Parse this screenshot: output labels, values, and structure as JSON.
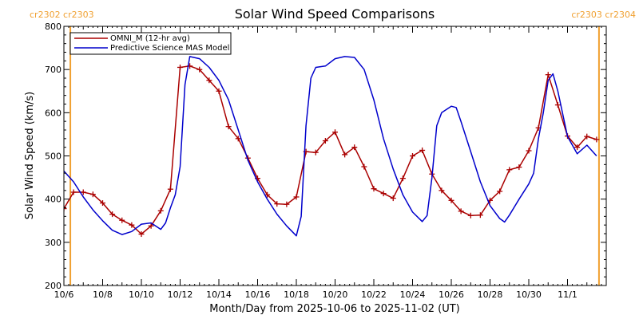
{
  "colors": {
    "omni": "#aa0000",
    "model": "#0000cc",
    "carrington": "#f0a030",
    "axis": "#000000"
  },
  "chart_data": {
    "type": "line",
    "title": "Solar Wind Speed Comparisons",
    "xlabel": "Month/Day from 2025-10-06 to 2025-11-02 (UT)",
    "ylabel": "Solar Wind Speed (km/s)",
    "ylim": [
      200,
      800
    ],
    "y_ticks": [
      "200",
      "300",
      "400",
      "500",
      "600",
      "700",
      "800"
    ],
    "xlim": [
      "2025-10-06",
      "2025-11-02"
    ],
    "x_ticks": [
      {
        "date": "2025-10-06",
        "label": "10/6"
      },
      {
        "date": "2025-10-08",
        "label": "10/8"
      },
      {
        "date": "2025-10-10",
        "label": "10/10"
      },
      {
        "date": "2025-10-12",
        "label": "10/12"
      },
      {
        "date": "2025-10-14",
        "label": "10/14"
      },
      {
        "date": "2025-10-16",
        "label": "10/16"
      },
      {
        "date": "2025-10-18",
        "label": "10/18"
      },
      {
        "date": "2025-10-20",
        "label": "10/20"
      },
      {
        "date": "2025-10-22",
        "label": "10/22"
      },
      {
        "date": "2025-10-24",
        "label": "10/24"
      },
      {
        "date": "2025-10-26",
        "label": "10/26"
      },
      {
        "date": "2025-10-28",
        "label": "10/28"
      },
      {
        "date": "2025-10-30",
        "label": "10/30"
      },
      {
        "date": "2025-11-01",
        "label": "11/1"
      }
    ],
    "legend_position": "top-left",
    "grid": false,
    "carrington_markers": [
      {
        "date": "2025-10-06 08:00",
        "label": "cr2302 cr2303",
        "label_side": "top-left"
      },
      {
        "date": "2025-11-02 15:00",
        "label": "cr2303 cr2304",
        "label_side": "top-right"
      }
    ],
    "series": [
      {
        "name": "OMNI_M (12-hr avg)",
        "color": "#aa0000",
        "markers": true,
        "points": [
          [
            "2025-10-06 00:00",
            378
          ],
          [
            "2025-10-06 12:00",
            416
          ],
          [
            "2025-10-07 00:00",
            416
          ],
          [
            "2025-10-07 12:00",
            411
          ],
          [
            "2025-10-08 00:00",
            391
          ],
          [
            "2025-10-08 12:00",
            365
          ],
          [
            "2025-10-09 00:00",
            351
          ],
          [
            "2025-10-09 12:00",
            340
          ],
          [
            "2025-10-10 00:00",
            319
          ],
          [
            "2025-10-10 12:00",
            338
          ],
          [
            "2025-10-11 00:00",
            373
          ],
          [
            "2025-10-11 12:00",
            423
          ],
          [
            "2025-10-12 00:00",
            705
          ],
          [
            "2025-10-12 12:00",
            708
          ],
          [
            "2025-10-13 00:00",
            700
          ],
          [
            "2025-10-13 12:00",
            675
          ],
          [
            "2025-10-14 00:00",
            650
          ],
          [
            "2025-10-14 12:00",
            568
          ],
          [
            "2025-10-15 00:00",
            540
          ],
          [
            "2025-10-15 12:00",
            495
          ],
          [
            "2025-10-16 00:00",
            448
          ],
          [
            "2025-10-16 12:00",
            410
          ],
          [
            "2025-10-17 00:00",
            389
          ],
          [
            "2025-10-17 12:00",
            388
          ],
          [
            "2025-10-18 00:00",
            405
          ],
          [
            "2025-10-18 12:00",
            510
          ],
          [
            "2025-10-19 00:00",
            508
          ],
          [
            "2025-10-19 12:00",
            535
          ],
          [
            "2025-10-20 00:00",
            555
          ],
          [
            "2025-10-20 12:00",
            503
          ],
          [
            "2025-10-21 00:00",
            520
          ],
          [
            "2025-10-21 12:00",
            475
          ],
          [
            "2025-10-22 00:00",
            424
          ],
          [
            "2025-10-22 12:00",
            413
          ],
          [
            "2025-10-23 00:00",
            402
          ],
          [
            "2025-10-23 12:00",
            448
          ],
          [
            "2025-10-24 00:00",
            500
          ],
          [
            "2025-10-24 12:00",
            513
          ],
          [
            "2025-10-25 00:00",
            458
          ],
          [
            "2025-10-25 12:00",
            420
          ],
          [
            "2025-10-26 00:00",
            397
          ],
          [
            "2025-10-26 12:00",
            372
          ],
          [
            "2025-10-27 00:00",
            362
          ],
          [
            "2025-10-27 12:00",
            363
          ],
          [
            "2025-10-28 00:00",
            397
          ],
          [
            "2025-10-28 12:00",
            418
          ],
          [
            "2025-10-29 00:00",
            468
          ],
          [
            "2025-10-29 12:00",
            474
          ],
          [
            "2025-10-30 00:00",
            512
          ],
          [
            "2025-10-30 12:00",
            565
          ],
          [
            "2025-10-31 00:00",
            688
          ],
          [
            "2025-10-31 12:00",
            618
          ],
          [
            "2025-11-01 00:00",
            546
          ],
          [
            "2025-11-01 12:00",
            520
          ],
          [
            "2025-11-02 00:00",
            545
          ],
          [
            "2025-11-02 12:00",
            538
          ]
        ]
      },
      {
        "name": "Predictive Science MAS Model",
        "color": "#0000cc",
        "markers": false,
        "points": [
          [
            "2025-10-06 00:00",
            465
          ],
          [
            "2025-10-06 12:00",
            440
          ],
          [
            "2025-10-07 00:00",
            405
          ],
          [
            "2025-10-07 12:00",
            375
          ],
          [
            "2025-10-08 00:00",
            350
          ],
          [
            "2025-10-08 12:00",
            328
          ],
          [
            "2025-10-09 00:00",
            318
          ],
          [
            "2025-10-09 12:00",
            325
          ],
          [
            "2025-10-10 00:00",
            342
          ],
          [
            "2025-10-10 12:00",
            345
          ],
          [
            "2025-10-11 00:00",
            330
          ],
          [
            "2025-10-11 06:00",
            345
          ],
          [
            "2025-10-11 12:00",
            380
          ],
          [
            "2025-10-11 18:00",
            410
          ],
          [
            "2025-10-12 00:00",
            475
          ],
          [
            "2025-10-12 06:00",
            665
          ],
          [
            "2025-10-12 12:00",
            730
          ],
          [
            "2025-10-13 00:00",
            725
          ],
          [
            "2025-10-13 12:00",
            705
          ],
          [
            "2025-10-14 00:00",
            675
          ],
          [
            "2025-10-14 12:00",
            630
          ],
          [
            "2025-10-15 00:00",
            560
          ],
          [
            "2025-10-15 12:00",
            490
          ],
          [
            "2025-10-16 00:00",
            440
          ],
          [
            "2025-10-16 12:00",
            400
          ],
          [
            "2025-10-17 00:00",
            365
          ],
          [
            "2025-10-17 12:00",
            338
          ],
          [
            "2025-10-18 00:00",
            315
          ],
          [
            "2025-10-18 06:00",
            360
          ],
          [
            "2025-10-18 12:00",
            570
          ],
          [
            "2025-10-18 18:00",
            680
          ],
          [
            "2025-10-19 00:00",
            705
          ],
          [
            "2025-10-19 12:00",
            708
          ],
          [
            "2025-10-20 00:00",
            725
          ],
          [
            "2025-10-20 12:00",
            730
          ],
          [
            "2025-10-21 00:00",
            728
          ],
          [
            "2025-10-21 12:00",
            700
          ],
          [
            "2025-10-22 00:00",
            630
          ],
          [
            "2025-10-22 12:00",
            540
          ],
          [
            "2025-10-23 00:00",
            470
          ],
          [
            "2025-10-23 12:00",
            410
          ],
          [
            "2025-10-24 00:00",
            370
          ],
          [
            "2025-10-24 12:00",
            348
          ],
          [
            "2025-10-24 18:00",
            362
          ],
          [
            "2025-10-25 00:00",
            450
          ],
          [
            "2025-10-25 06:00",
            570
          ],
          [
            "2025-10-25 12:00",
            600
          ],
          [
            "2025-10-26 00:00",
            615
          ],
          [
            "2025-10-26 06:00",
            612
          ],
          [
            "2025-10-26 12:00",
            580
          ],
          [
            "2025-10-27 00:00",
            510
          ],
          [
            "2025-10-27 12:00",
            440
          ],
          [
            "2025-10-28 00:00",
            385
          ],
          [
            "2025-10-28 12:00",
            355
          ],
          [
            "2025-10-28 18:00",
            347
          ],
          [
            "2025-10-29 00:00",
            363
          ],
          [
            "2025-10-29 12:00",
            400
          ],
          [
            "2025-10-30 00:00",
            435
          ],
          [
            "2025-10-30 06:00",
            460
          ],
          [
            "2025-10-30 12:00",
            540
          ],
          [
            "2025-10-30 18:00",
            600
          ],
          [
            "2025-10-31 00:00",
            675
          ],
          [
            "2025-10-31 06:00",
            690
          ],
          [
            "2025-10-31 12:00",
            650
          ],
          [
            "2025-11-01 00:00",
            545
          ],
          [
            "2025-11-01 12:00",
            505
          ],
          [
            "2025-11-02 00:00",
            525
          ],
          [
            "2025-11-02 12:00",
            500
          ]
        ]
      }
    ]
  }
}
